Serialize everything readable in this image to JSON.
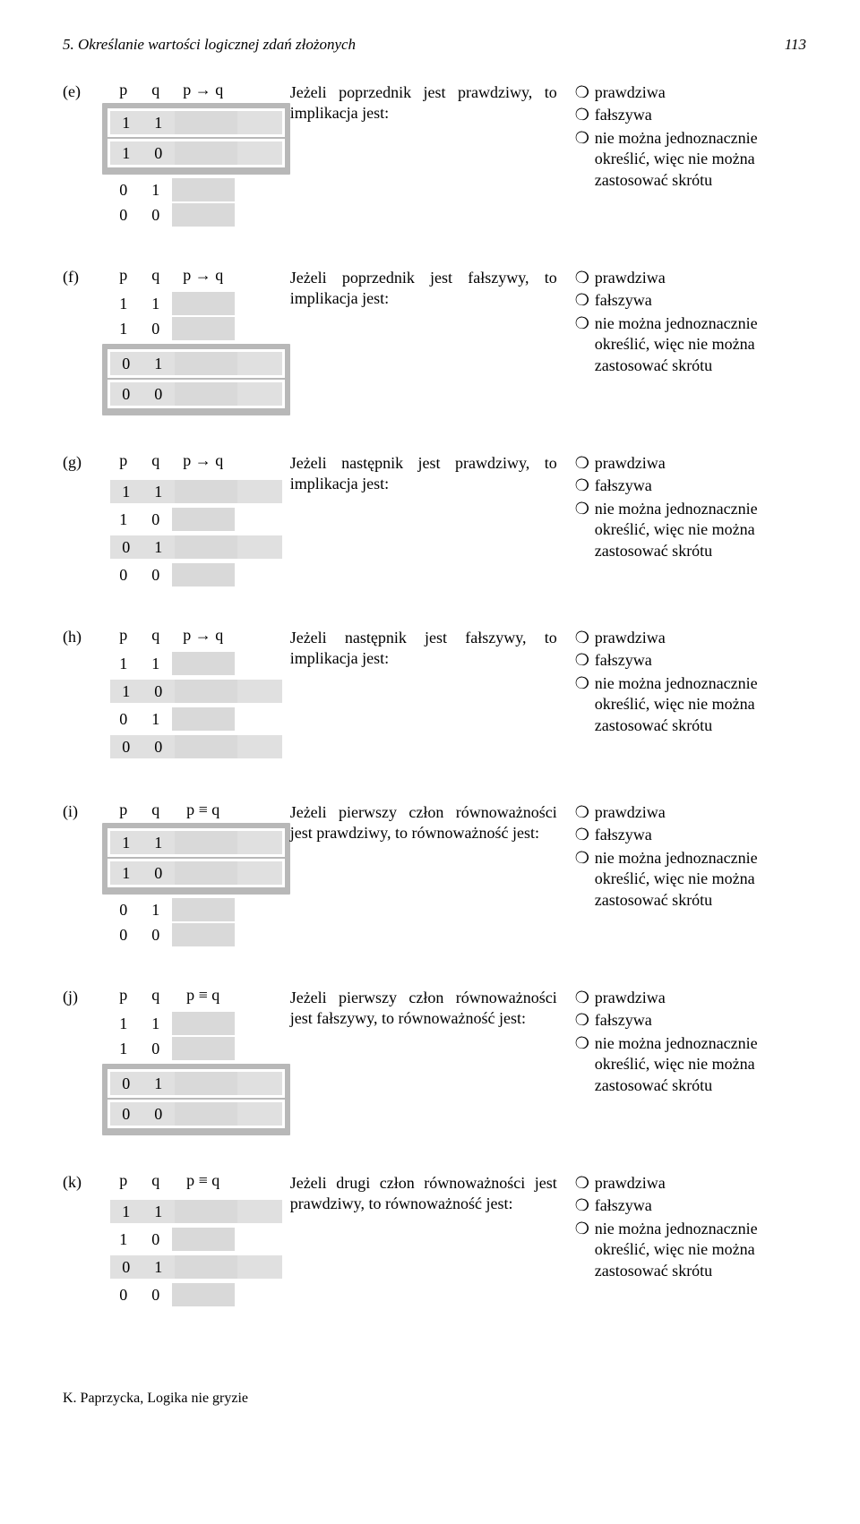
{
  "header": {
    "title": "5. Określanie wartości logicznej zdań złożonych",
    "page_number": "113"
  },
  "footer": "K. Paprzycka, Logika nie gryzie",
  "common": {
    "col_p": "p",
    "col_q": "q",
    "col_imp": "p → q",
    "col_eq": "p ≡ q",
    "ans1": "prawdziwa",
    "ans2": "fałszywa",
    "ans3": "nie można jednoznacznie określić, więc nie można zastosować skrótu",
    "circle": "❍"
  },
  "rows": {
    "r11": {
      "p": "1",
      "q": "1"
    },
    "r10": {
      "p": "1",
      "q": "0"
    },
    "r01": {
      "p": "0",
      "q": "1"
    },
    "r00": {
      "p": "0",
      "q": "0"
    }
  },
  "items": {
    "e": {
      "label": "(e)",
      "op": "imp",
      "band": "top",
      "highlight": [],
      "question": "Jeżeli poprzednik jest prawdziwy, to implikacja jest:"
    },
    "f": {
      "label": "(f)",
      "op": "imp",
      "band": "bottom",
      "highlight": [],
      "question": "Jeżeli poprzednik jest fałszywy, to implikacja jest:"
    },
    "g": {
      "label": "(g)",
      "op": "imp",
      "band": "none",
      "highlight": [
        "r11",
        "r01"
      ],
      "question": "Jeżeli następnik jest prawdziwy, to implikacja jest:"
    },
    "h": {
      "label": "(h)",
      "op": "imp",
      "band": "none",
      "highlight": [
        "r10",
        "r00"
      ],
      "question": "Jeżeli następnik jest fałszywy, to implikacja jest:"
    },
    "i": {
      "label": "(i)",
      "op": "eq",
      "band": "top",
      "highlight": [],
      "question": "Jeżeli pierwszy człon równoważności jest prawdziwy, to równoważność jest:"
    },
    "j": {
      "label": "(j)",
      "op": "eq",
      "band": "bottom",
      "highlight": [],
      "question": "Jeżeli pierwszy człon równoważności jest fałszywy, to równoważność jest:"
    },
    "k": {
      "label": "(k)",
      "op": "eq",
      "band": "none",
      "highlight": [
        "r11",
        "r01"
      ],
      "question": "Jeżeli drugi człon równoważności jest prawdziwy, to równoważność jest:"
    }
  },
  "item_order": [
    "e",
    "f",
    "g",
    "h",
    "i",
    "j",
    "k"
  ]
}
